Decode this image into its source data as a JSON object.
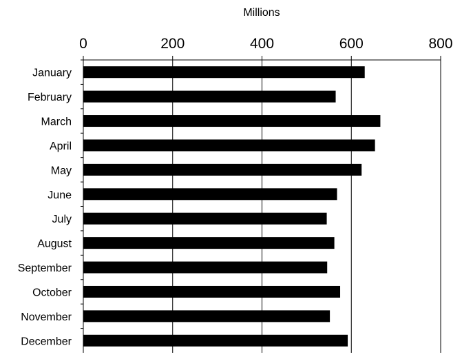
{
  "chart_data": {
    "type": "bar",
    "orientation": "horizontal",
    "axis_label": "Millions",
    "axis_position": "top",
    "xlim": [
      0,
      800
    ],
    "ticks": [
      0,
      200,
      400,
      600,
      800
    ],
    "tick_labels": [
      "0",
      "200",
      "400",
      "600",
      "800"
    ],
    "grid": true,
    "bar_color": "#000000",
    "categories": [
      "January",
      "February",
      "March",
      "April",
      "May",
      "June",
      "July",
      "August",
      "September",
      "October",
      "November",
      "December"
    ],
    "values": [
      630,
      565,
      665,
      653,
      623,
      568,
      545,
      562,
      546,
      575,
      552,
      592
    ]
  }
}
